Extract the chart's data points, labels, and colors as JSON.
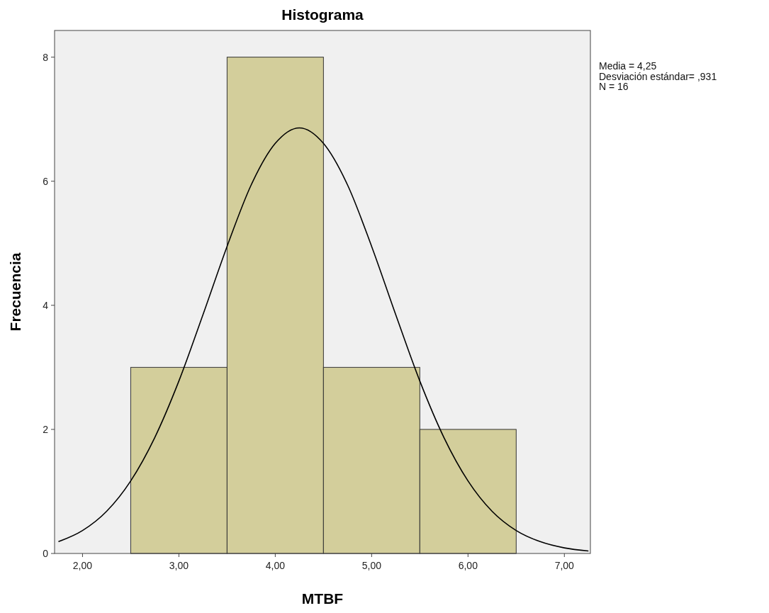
{
  "chart_data": {
    "type": "histogram",
    "title": "Histograma",
    "xlabel": "MTBF",
    "ylabel": "Frecuencia",
    "bins": [
      2.5,
      3.5,
      4.5,
      5.5,
      6.5
    ],
    "values": [
      3,
      8,
      3,
      2
    ],
    "color": "#d3ce9b",
    "series": [
      {
        "type": "line",
        "color": "#000000",
        "x": [
          1.75,
          2.0,
          2.25,
          2.5,
          2.75,
          3.0,
          3.25,
          3.5,
          3.75,
          4.0,
          4.25,
          4.5,
          4.75,
          5.0,
          5.25,
          5.5,
          5.75,
          6.0,
          6.25,
          6.5,
          6.75,
          7.0,
          7.25
        ],
        "values": [
          0.19,
          0.37,
          0.68,
          1.17,
          1.87,
          2.78,
          3.85,
          4.95,
          5.94,
          6.61,
          6.86,
          6.61,
          5.94,
          4.95,
          3.85,
          2.78,
          1.87,
          1.17,
          0.68,
          0.37,
          0.19,
          0.09,
          0.04
        ]
      }
    ],
    "xlim": [
      1.71,
      7.27
    ],
    "xticks": [
      {
        "value": 2,
        "label": "2,00"
      },
      {
        "value": 3,
        "label": "3,00"
      },
      {
        "value": 4,
        "label": "4,00"
      },
      {
        "value": 5,
        "label": "5,00"
      },
      {
        "value": 6,
        "label": "6,00"
      },
      {
        "value": 7,
        "label": "7,00"
      }
    ],
    "ylim": [
      0,
      8.43
    ],
    "yticks": [
      0,
      2,
      4,
      6,
      8
    ],
    "annotations": [
      "Media = 4,25",
      "Desviación estándar= ,931",
      "N = 16"
    ]
  }
}
